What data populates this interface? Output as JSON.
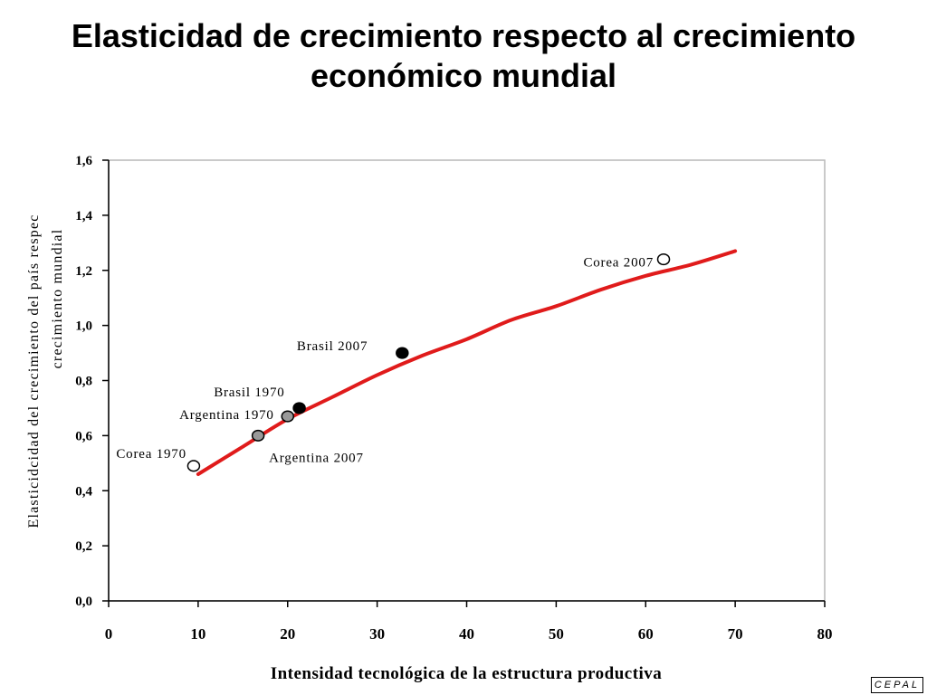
{
  "title_line1": "Elasticidad de crecimiento respecto al crecimiento",
  "title_line2": "económico mundial",
  "logo_text": "CEPAL",
  "colors": {
    "curve": "#e01b1b",
    "closed_marker": "#000000",
    "grey_marker": "#999999",
    "open_marker": "#ffffff"
  },
  "chart_data": {
    "type": "scatter",
    "xlabel": "Intensidad tecnológica de la estructura productiva",
    "ylabel_line1": "Elasticidcidad del crecimiento del país respec",
    "ylabel_line2": "crecimiento mundial",
    "xlim": [
      0,
      80
    ],
    "ylim": [
      0,
      1.6
    ],
    "x_ticks": [
      0,
      10,
      20,
      30,
      40,
      50,
      60,
      70,
      80
    ],
    "x_tick_labels": [
      "0",
      "10",
      "20",
      "30",
      "40",
      "50",
      "60",
      "70",
      "80"
    ],
    "y_ticks": [
      0,
      0.2,
      0.4,
      0.6,
      0.8,
      1.0,
      1.2,
      1.4,
      1.6
    ],
    "y_tick_labels": [
      "0,0",
      "0,2",
      "0,4",
      "0,6",
      "0,8",
      "1,0",
      "1,2",
      "1,4",
      "1,6"
    ],
    "grid": false,
    "curve": {
      "x": [
        10,
        15,
        20,
        25,
        30,
        35,
        40,
        45,
        50,
        55,
        60,
        65,
        70
      ],
      "y": [
        0.46,
        0.56,
        0.66,
        0.74,
        0.82,
        0.89,
        0.95,
        1.02,
        1.07,
        1.13,
        1.18,
        1.22,
        1.27
      ]
    },
    "points": [
      {
        "label": "Corea 1970",
        "x": 9.5,
        "y": 0.49,
        "style": "open"
      },
      {
        "label": "Argentina 1970",
        "x": 20,
        "y": 0.67,
        "style": "grey"
      },
      {
        "label": "Argentina 2007",
        "x": 16.7,
        "y": 0.6,
        "style": "grey"
      },
      {
        "label": "Brasil 1970",
        "x": 21.3,
        "y": 0.7,
        "style": "closed"
      },
      {
        "label": "Brasil 2007",
        "x": 32.8,
        "y": 0.9,
        "style": "closed"
      },
      {
        "label": "Corea 2007",
        "x": 62,
        "y": 1.24,
        "style": "open"
      }
    ]
  }
}
